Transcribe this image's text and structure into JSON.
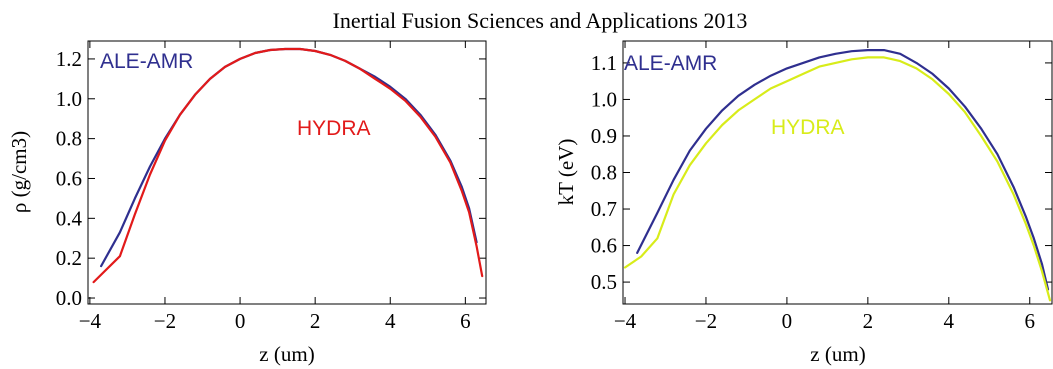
{
  "title": "Inertial Fusion Sciences and Applications 2013",
  "colors": {
    "ale_amr": "#2f2f8f",
    "hydra_left": "#e21a1a",
    "hydra_right": "#d8ec1a"
  },
  "chart_data": [
    {
      "type": "line",
      "xlabel": "z (um)",
      "ylabel": "ρ (g/cm3)",
      "xlim": [
        -4.05,
        6.55
      ],
      "ylim": [
        -0.03,
        1.29
      ],
      "xticks": [
        -4,
        -2,
        0,
        2,
        4,
        6
      ],
      "xtick_labels": [
        "−4",
        "−2",
        "0",
        "2",
        "4",
        "6"
      ],
      "yticks": [
        0.0,
        0.2,
        0.4,
        0.6,
        0.8,
        1.0,
        1.2
      ],
      "ytick_labels": [
        "0.0",
        "0.2",
        "0.4",
        "0.6",
        "0.8",
        "1.0",
        "1.2"
      ],
      "grid": false,
      "series": [
        {
          "name": "ALE-AMR",
          "color": "#2f2f8f",
          "x": [
            -3.7,
            -3.2,
            -2.8,
            -2.4,
            -2.0,
            -1.6,
            -1.2,
            -0.8,
            -0.4,
            0.0,
            0.4,
            0.8,
            1.2,
            1.6,
            2.0,
            2.4,
            2.8,
            3.2,
            3.6,
            4.0,
            4.4,
            4.8,
            5.2,
            5.6,
            5.9,
            6.1,
            6.3
          ],
          "y": [
            0.16,
            0.33,
            0.5,
            0.66,
            0.8,
            0.92,
            1.02,
            1.1,
            1.16,
            1.2,
            1.23,
            1.245,
            1.25,
            1.25,
            1.24,
            1.22,
            1.19,
            1.15,
            1.11,
            1.06,
            1.0,
            0.92,
            0.82,
            0.69,
            0.56,
            0.45,
            0.28
          ]
        },
        {
          "name": "HYDRA",
          "color": "#e21a1a",
          "x": [
            -3.9,
            -3.2,
            -2.8,
            -2.4,
            -2.0,
            -1.6,
            -1.2,
            -0.8,
            -0.4,
            0.0,
            0.4,
            0.8,
            1.2,
            1.6,
            2.0,
            2.4,
            2.8,
            3.2,
            3.6,
            4.0,
            4.4,
            4.8,
            5.2,
            5.6,
            5.9,
            6.1,
            6.3,
            6.45
          ],
          "y": [
            0.08,
            0.21,
            0.42,
            0.62,
            0.79,
            0.92,
            1.02,
            1.1,
            1.16,
            1.2,
            1.23,
            1.245,
            1.25,
            1.25,
            1.24,
            1.22,
            1.19,
            1.15,
            1.1,
            1.05,
            0.99,
            0.91,
            0.81,
            0.68,
            0.54,
            0.43,
            0.26,
            0.11
          ]
        }
      ]
    },
    {
      "type": "line",
      "xlabel": "z (um)",
      "ylabel": "kT (eV)",
      "xlim": [
        -4.05,
        6.55
      ],
      "ylim": [
        0.44,
        1.16
      ],
      "xticks": [
        -4,
        -2,
        0,
        2,
        4,
        6
      ],
      "xtick_labels": [
        "−4",
        "−2",
        "0",
        "2",
        "4",
        "6"
      ],
      "yticks": [
        0.5,
        0.6,
        0.7,
        0.8,
        0.9,
        1.0,
        1.1
      ],
      "ytick_labels": [
        "0.5",
        "0.6",
        "0.7",
        "0.8",
        "0.9",
        "1.0",
        "1.1"
      ],
      "grid": false,
      "series": [
        {
          "name": "ALE-AMR",
          "color": "#2f2f8f",
          "x": [
            -3.7,
            -3.2,
            -2.8,
            -2.4,
            -2.0,
            -1.6,
            -1.2,
            -0.8,
            -0.4,
            0.0,
            0.4,
            0.8,
            1.2,
            1.6,
            2.0,
            2.4,
            2.8,
            3.2,
            3.6,
            4.0,
            4.4,
            4.8,
            5.2,
            5.6,
            5.9,
            6.1,
            6.3,
            6.45
          ],
          "y": [
            0.58,
            0.69,
            0.78,
            0.86,
            0.92,
            0.97,
            1.01,
            1.04,
            1.065,
            1.085,
            1.1,
            1.115,
            1.125,
            1.132,
            1.135,
            1.135,
            1.125,
            1.1,
            1.07,
            1.03,
            0.98,
            0.92,
            0.85,
            0.76,
            0.68,
            0.62,
            0.55,
            0.48
          ]
        },
        {
          "name": "HYDRA",
          "color": "#d8ec1a",
          "x": [
            -4.0,
            -3.6,
            -3.2,
            -2.8,
            -2.4,
            -2.0,
            -1.6,
            -1.2,
            -0.8,
            -0.4,
            0.0,
            0.4,
            0.8,
            1.2,
            1.6,
            2.0,
            2.4,
            2.8,
            3.2,
            3.6,
            4.0,
            4.4,
            4.8,
            5.2,
            5.6,
            5.9,
            6.1,
            6.3,
            6.5
          ],
          "y": [
            0.54,
            0.57,
            0.62,
            0.74,
            0.82,
            0.88,
            0.93,
            0.97,
            1.0,
            1.03,
            1.05,
            1.07,
            1.09,
            1.1,
            1.11,
            1.115,
            1.115,
            1.105,
            1.085,
            1.055,
            1.015,
            0.965,
            0.9,
            0.83,
            0.74,
            0.66,
            0.6,
            0.53,
            0.45
          ]
        }
      ]
    }
  ]
}
